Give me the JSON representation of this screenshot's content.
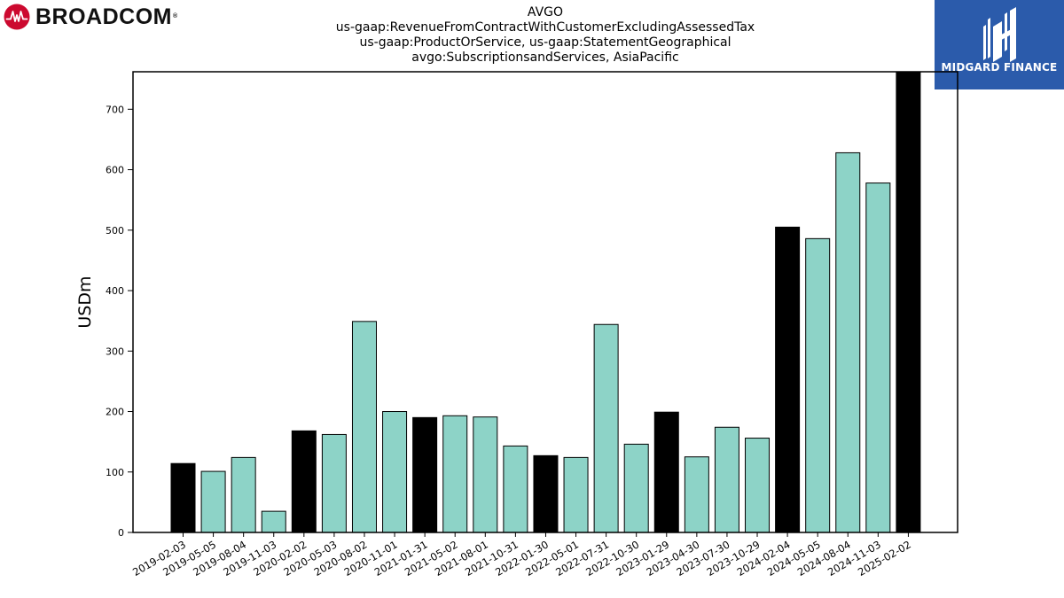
{
  "branding": {
    "company_logo_text": "BROADCOM",
    "company_logo_mark": "®",
    "publisher_logo_text": "MIDGARD FINANCE"
  },
  "chart_data": {
    "type": "bar",
    "title_lines": [
      "AVGO",
      "us-gaap:RevenueFromContractWithCustomerExcludingAssessedTax",
      "us-gaap:ProductOrService, us-gaap:StatementGeographical",
      "avgo:SubscriptionsandServices, AsiaPacific"
    ],
    "xlabel": "",
    "ylabel": "USDm",
    "ylim": [
      0,
      762
    ],
    "yticks": [
      0,
      100,
      200,
      300,
      400,
      500,
      600,
      700
    ],
    "grid": false,
    "legend": "none",
    "colors": {
      "fiscal_year_end": "#000000",
      "quarter": "#8dd3c7",
      "edge": "#000000"
    },
    "categories": [
      "2019-02-03",
      "2019-05-05",
      "2019-08-04",
      "2019-11-03",
      "2020-02-02",
      "2020-05-03",
      "2020-08-02",
      "2020-11-01",
      "2021-01-31",
      "2021-05-02",
      "2021-08-01",
      "2021-10-31",
      "2022-01-30",
      "2022-05-01",
      "2022-07-31",
      "2022-10-30",
      "2023-01-29",
      "2023-04-30",
      "2023-07-30",
      "2023-10-29",
      "2024-02-04",
      "2024-05-05",
      "2024-08-04",
      "2024-11-03",
      "2025-02-02"
    ],
    "values": [
      114,
      101,
      124,
      35,
      168,
      162,
      349,
      200,
      190,
      193,
      191,
      143,
      127,
      124,
      344,
      146,
      199,
      125,
      174,
      156,
      505,
      486,
      628,
      578,
      762
    ],
    "highlight": [
      true,
      false,
      false,
      false,
      true,
      false,
      false,
      false,
      true,
      false,
      false,
      false,
      true,
      false,
      false,
      false,
      true,
      false,
      false,
      false,
      true,
      false,
      false,
      false,
      true
    ]
  }
}
